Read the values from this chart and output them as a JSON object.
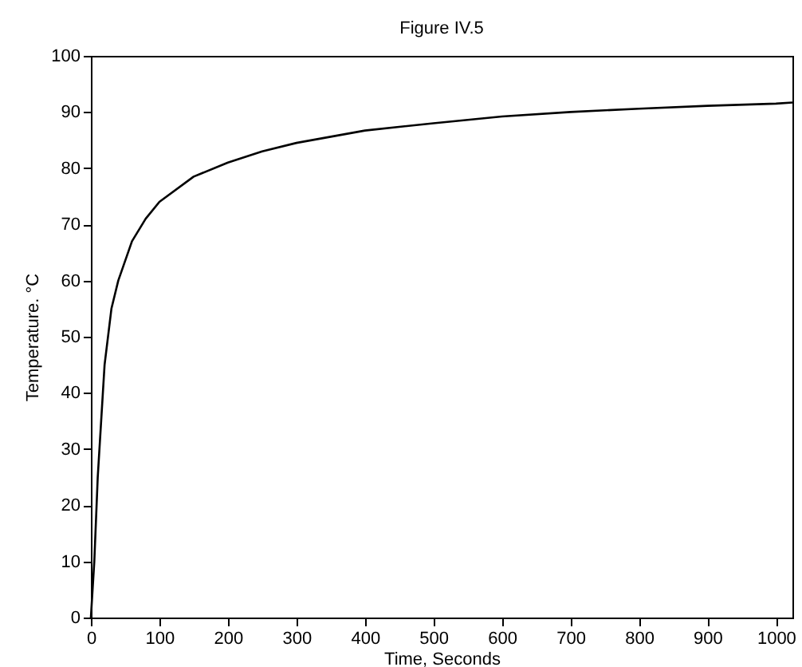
{
  "chart_data": {
    "type": "line",
    "title": "Figure IV.5",
    "xlabel": "Time,  Seconds",
    "ylabel": "Temperature.  °C",
    "x": [
      0,
      5,
      10,
      15,
      20,
      30,
      40,
      60,
      80,
      100,
      150,
      200,
      250,
      300,
      400,
      500,
      600,
      700,
      800,
      900,
      1000,
      1024
    ],
    "series": [
      {
        "color": "#000000",
        "values": [
          0,
          10,
          25,
          35,
          45,
          55,
          60,
          67,
          71,
          74,
          78.5,
          81,
          83,
          84.5,
          86.7,
          88,
          89.2,
          90,
          90.6,
          91.1,
          91.5,
          91.7
        ]
      }
    ],
    "xlim": [
      0,
      1024
    ],
    "xticks": [
      0,
      100,
      200,
      300,
      400,
      500,
      600,
      700,
      800,
      900,
      1000
    ],
    "ylim": [
      0,
      100
    ],
    "yticks": [
      0,
      10,
      20,
      30,
      40,
      50,
      60,
      70,
      80,
      90,
      100
    ],
    "grid": false,
    "marker": "none",
    "line_style": "solid"
  }
}
